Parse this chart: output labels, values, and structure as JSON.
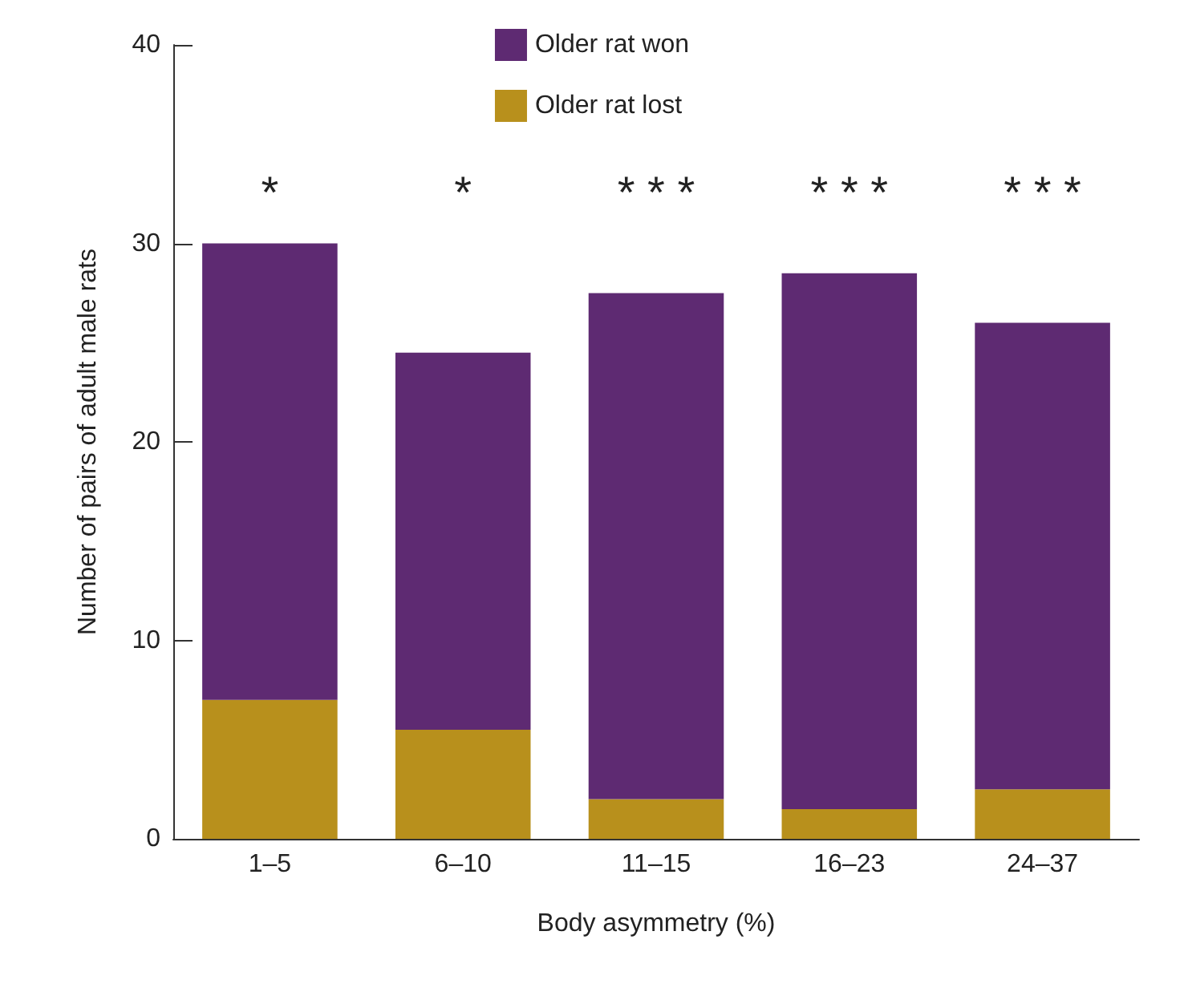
{
  "chart_data": {
    "type": "bar",
    "stacked": true,
    "xlabel": "Body asymmetry (%)",
    "ylabel": "Number of pairs of adult male rats",
    "categories": [
      "1–5",
      "6–10",
      "11–15",
      "16–23",
      "24–37"
    ],
    "series": [
      {
        "name": "Older rat lost",
        "color": "#b8901c",
        "values": [
          7,
          5.5,
          2,
          1.5,
          2.5
        ]
      },
      {
        "name": "Older rat won",
        "color": "#5e2a72",
        "values": [
          23,
          19,
          25.5,
          27,
          23.5
        ]
      }
    ],
    "ylim": [
      0,
      40
    ],
    "yticks": [
      0,
      10,
      20,
      30,
      40
    ],
    "grid": false,
    "legend": "top",
    "annotations": [
      "*",
      "*",
      "* * *",
      "* * *",
      "* * *"
    ]
  }
}
